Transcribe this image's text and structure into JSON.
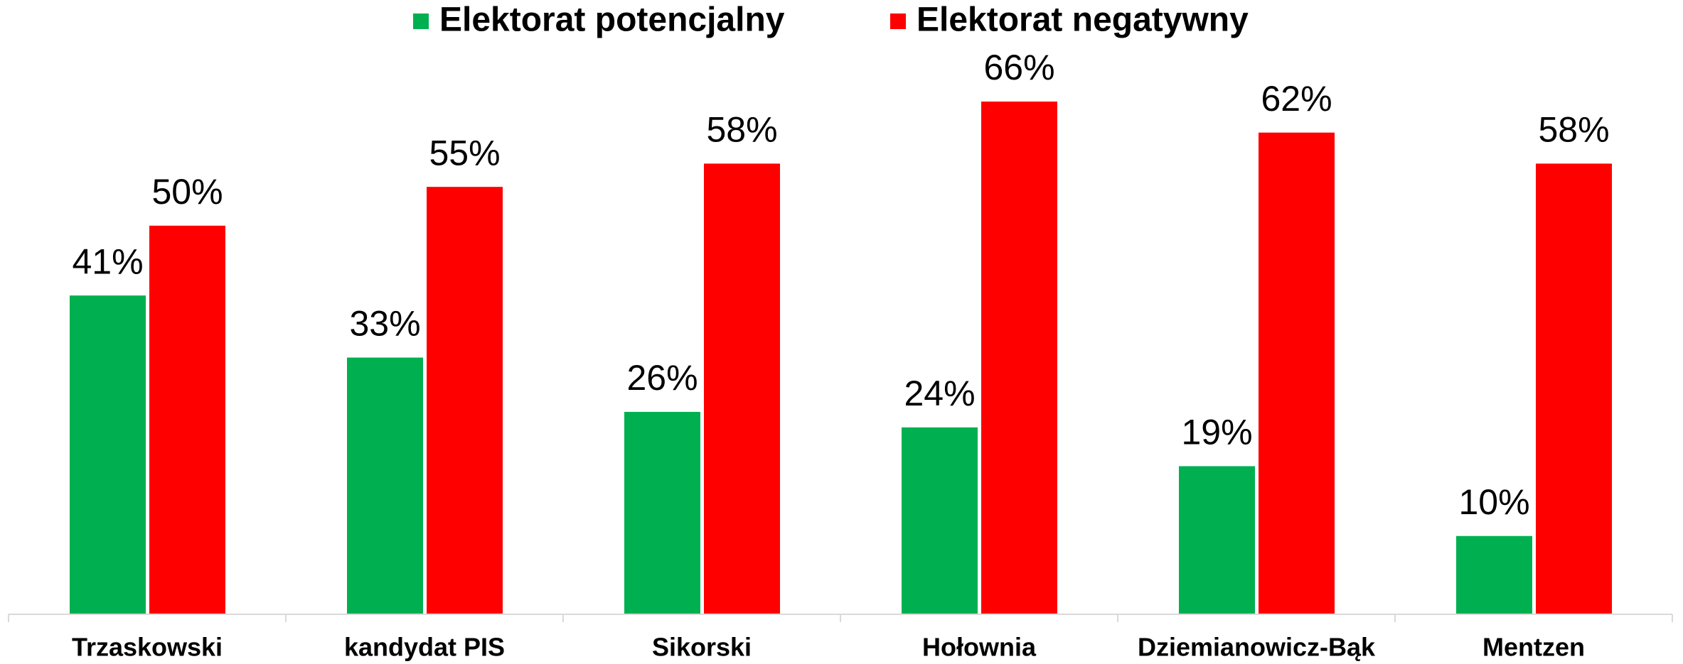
{
  "chart_data": {
    "type": "bar",
    "categories": [
      "Trzaskowski",
      "kandydat PIS",
      "Sikorski",
      "Hołownia",
      "Dziemianowicz-Bąk",
      "Mentzen"
    ],
    "series": [
      {
        "name": "Elektorat potencjalny",
        "color": "#00b050",
        "values": [
          41,
          33,
          26,
          24,
          19,
          10
        ],
        "value_labels": [
          "41%",
          "33%",
          "26%",
          "24%",
          "19%",
          "10%"
        ]
      },
      {
        "name": "Elektorat negatywny",
        "color": "#ff0000",
        "values": [
          50,
          55,
          58,
          66,
          62,
          58
        ],
        "value_labels": [
          "50%",
          "55%",
          "58%",
          "66%",
          "62%",
          "58%"
        ]
      }
    ],
    "legend": "top"
  }
}
